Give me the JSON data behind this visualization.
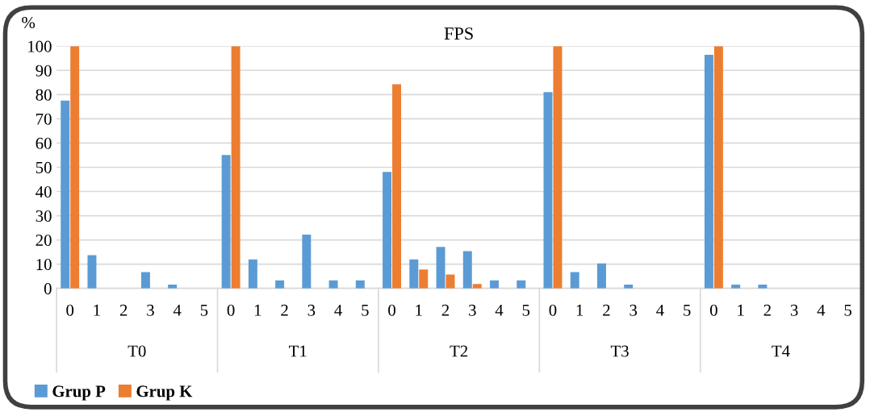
{
  "chart_data": {
    "type": "bar",
    "title": "FPS",
    "ylabel": "%",
    "categories": [
      "0",
      "1",
      "2",
      "3",
      "4",
      "5",
      "0",
      "1",
      "2",
      "3",
      "4",
      "5",
      "0",
      "1",
      "2",
      "3",
      "4",
      "5",
      "0",
      "1",
      "2",
      "3",
      "4",
      "5",
      "0",
      "1",
      "2",
      "3",
      "4",
      "5"
    ],
    "series": [
      {
        "name": "Grup P",
        "color": "#5b9bd5",
        "values": [
          77.5,
          13.7,
          0,
          6.7,
          1.6,
          0,
          55.1,
          12.0,
          3.3,
          22.2,
          3.3,
          3.3,
          48.1,
          12.0,
          17.1,
          15.4,
          3.3,
          3.3,
          81.0,
          6.7,
          10.3,
          1.6,
          0,
          0,
          96.4,
          1.6,
          1.6,
          0,
          0,
          0
        ]
      },
      {
        "name": "Grup K",
        "color": "#ed7d31",
        "values": [
          100,
          0,
          0,
          0,
          0,
          0,
          100,
          0,
          0,
          0,
          0,
          0,
          84.3,
          7.8,
          5.7,
          1.8,
          0,
          0,
          100,
          0,
          0,
          0,
          0,
          0,
          100,
          0,
          0,
          0,
          0,
          0
        ]
      }
    ],
    "annotations": [
      "T0",
      "T1",
      "T2",
      "T3",
      "T4"
    ],
    "ylim": [
      0,
      100
    ],
    "yticks": [
      0,
      10,
      20,
      30,
      40,
      50,
      60,
      70,
      80,
      90,
      100
    ],
    "grid": "y",
    "legend": "bottom left"
  }
}
